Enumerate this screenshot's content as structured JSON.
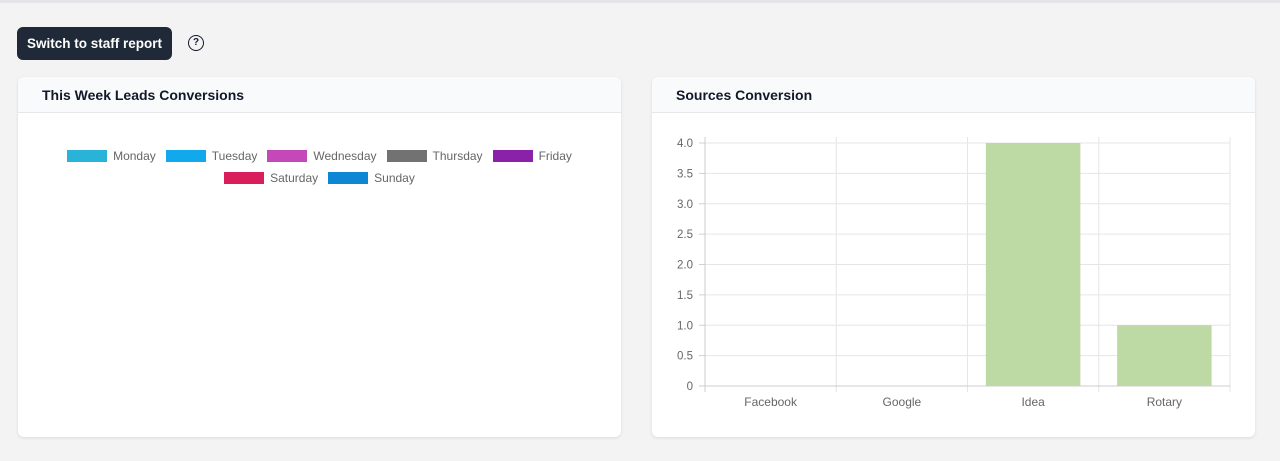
{
  "toolbar": {
    "switch_label": "Switch to staff report",
    "help_glyph": "?",
    "help_icon": "question-circle-icon"
  },
  "left_panel": {
    "title": "This Week Leads Conversions",
    "legend": [
      {
        "label": "Monday",
        "color": "#2ab3d9"
      },
      {
        "label": "Tuesday",
        "color": "#12a8ec"
      },
      {
        "label": "Wednesday",
        "color": "#c448b8"
      },
      {
        "label": "Thursday",
        "color": "#727272"
      },
      {
        "label": "Friday",
        "color": "#8b21a8"
      },
      {
        "label": "Saturday",
        "color": "#d81e5b"
      },
      {
        "label": "Sunday",
        "color": "#0d86d3"
      }
    ]
  },
  "right_panel": {
    "title": "Sources Conversion"
  },
  "chart_data": {
    "type": "bar",
    "categories": [
      "Facebook",
      "Google",
      "Idea",
      "Rotary"
    ],
    "values": [
      0,
      0,
      4,
      1
    ],
    "ylim": [
      0,
      4
    ],
    "yticks": [
      "0",
      "0.5",
      "1.0",
      "1.5",
      "2.0",
      "2.5",
      "3.0",
      "3.5",
      "4.0"
    ],
    "bar_color": "#bdd9a4",
    "grid": true,
    "legend": "none"
  }
}
